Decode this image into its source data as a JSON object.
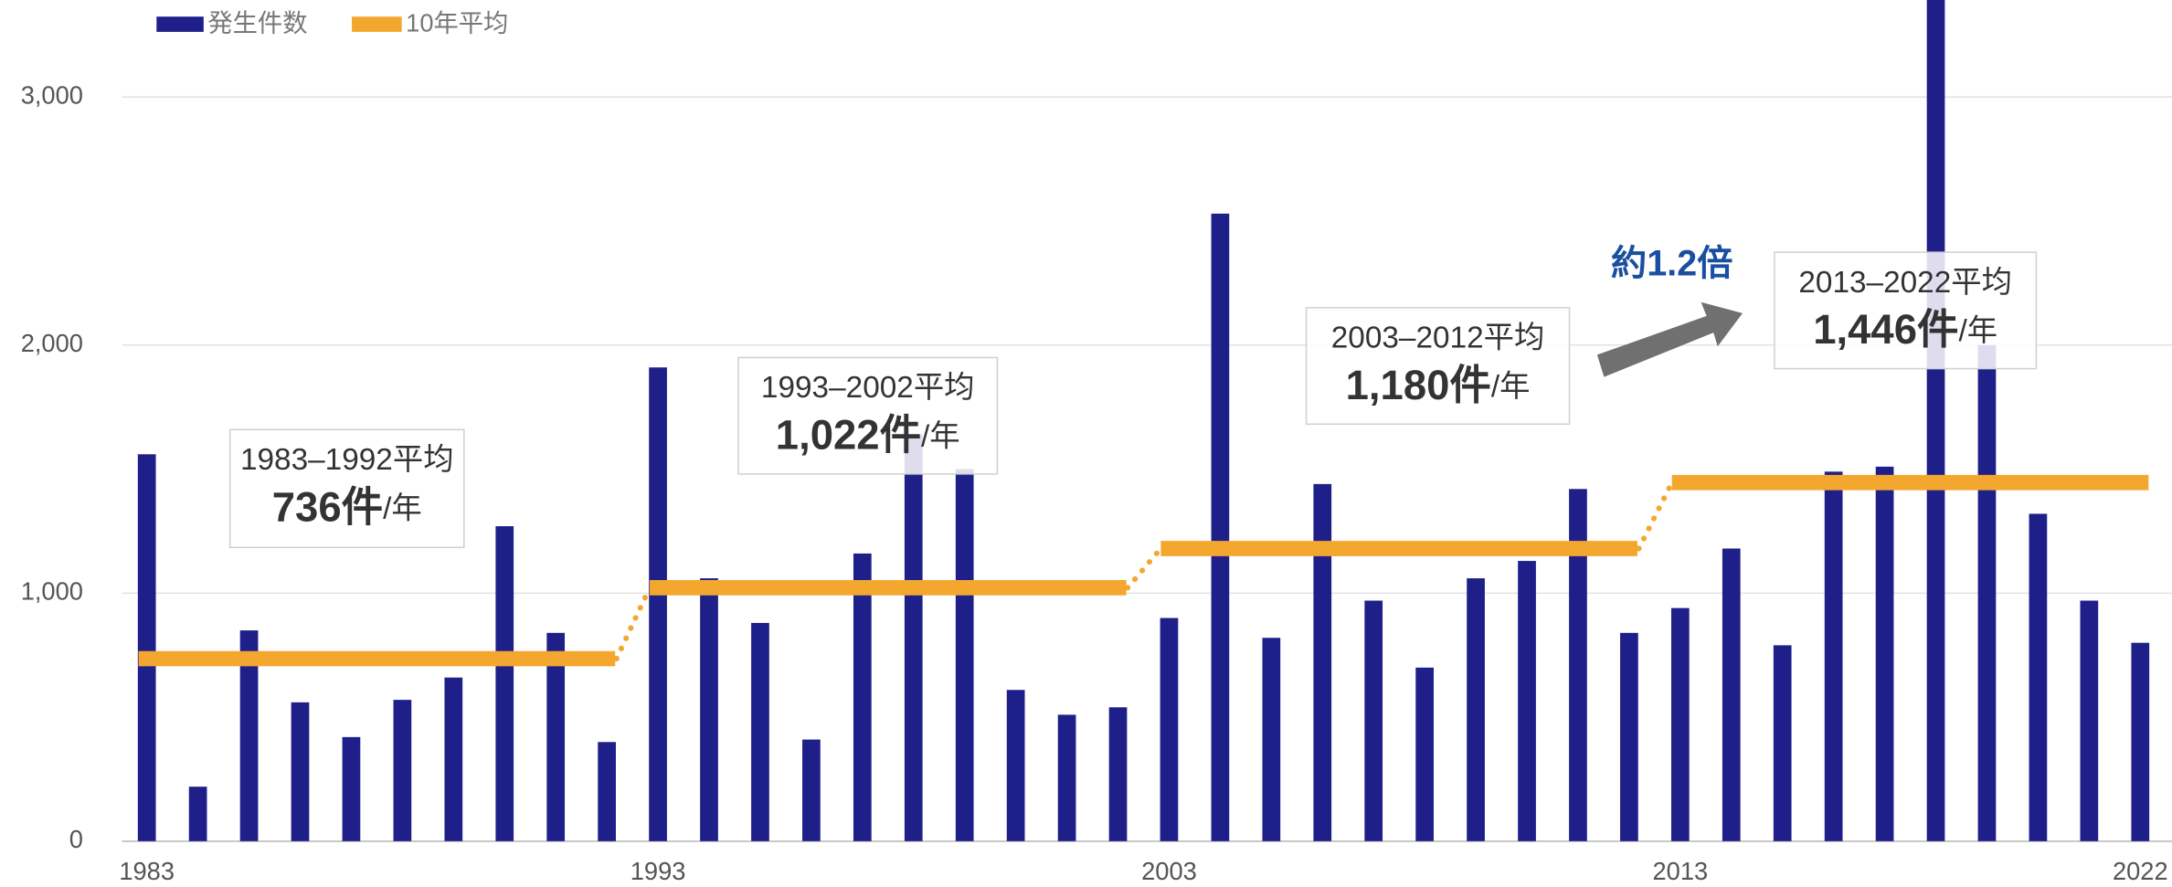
{
  "chart_data": {
    "type": "bar",
    "categories": [
      "1983",
      null,
      null,
      null,
      null,
      null,
      null,
      null,
      null,
      null,
      "1993",
      null,
      null,
      null,
      null,
      null,
      null,
      null,
      null,
      null,
      "2003",
      null,
      null,
      null,
      null,
      null,
      null,
      null,
      null,
      null,
      "2013",
      null,
      null,
      null,
      null,
      null,
      null,
      null,
      null,
      "2022"
    ],
    "series": [
      {
        "name": "発生件数",
        "color": "#1f1f8a",
        "values": [
          1560,
          220,
          850,
          560,
          420,
          570,
          660,
          1270,
          840,
          400,
          1910,
          1060,
          880,
          410,
          1160,
          1640,
          1500,
          610,
          510,
          540,
          900,
          2530,
          820,
          1440,
          970,
          700,
          1060,
          1130,
          1420,
          840,
          940,
          1180,
          790,
          1490,
          1510,
          3460,
          2000,
          1320,
          970,
          800
        ]
      },
      {
        "name": "10年平均",
        "color": "#f4a72f",
        "type": "line",
        "values": [
          736,
          736,
          736,
          736,
          736,
          736,
          736,
          736,
          736,
          736,
          1022,
          1022,
          1022,
          1022,
          1022,
          1022,
          1022,
          1022,
          1022,
          1022,
          1180,
          1180,
          1180,
          1180,
          1180,
          1180,
          1180,
          1180,
          1180,
          1180,
          1446,
          1446,
          1446,
          1446,
          1446,
          1446,
          1446,
          1446,
          1446,
          1446
        ]
      }
    ],
    "ylim": [
      0,
      3390
    ],
    "yticks": [
      0,
      {
        "value": 1000,
        "label": "1,000"
      },
      {
        "value": 2000,
        "label": "2,000"
      },
      {
        "value": 3000,
        "label": "3,000"
      }
    ],
    "grid": true,
    "annotations": [
      {
        "period": "1983–1992平均",
        "value": "736件",
        "unit": "/年"
      },
      {
        "period": "1993–2002平均",
        "value": "1,022件",
        "unit": "/年"
      },
      {
        "period": "2003–2012平均",
        "value": "1,180件",
        "unit": "/年"
      },
      {
        "period": "2013–2022平均",
        "value": "1,446件",
        "unit": "/年"
      }
    ],
    "arrow_label": "約1.2倍"
  }
}
